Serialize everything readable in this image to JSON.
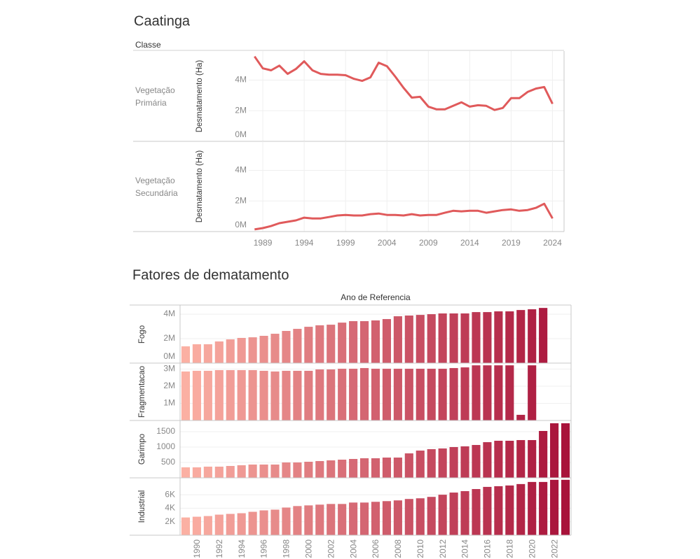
{
  "chart_data": [
    {
      "type": "line",
      "title": "Caatinga",
      "header": "Classe",
      "color": "#e05a5b",
      "grid": true,
      "x": [
        1988,
        1989,
        1990,
        1991,
        1992,
        1993,
        1994,
        1995,
        1996,
        1997,
        1998,
        1999,
        2000,
        2001,
        2002,
        2003,
        2004,
        2005,
        2006,
        2007,
        2008,
        2009,
        2010,
        2011,
        2012,
        2013,
        2014,
        2015,
        2016,
        2017,
        2018,
        2019,
        2020,
        2021,
        2022,
        2023,
        2024
      ],
      "xlim": [
        1987.3,
        2025.4
      ],
      "xticks": [
        1989,
        1994,
        1999,
        2004,
        2009,
        2014,
        2019,
        2024
      ],
      "ylim": [
        0,
        5900000
      ],
      "yticks": [
        {
          "value": 0,
          "label": "0M"
        },
        {
          "value": 2000000,
          "label": "2M"
        },
        {
          "value": 4000000,
          "label": "4M"
        }
      ],
      "panels": [
        {
          "label": "Vegetação Primária",
          "y_label": "Desmatamento (Ha)",
          "values": [
            5550000,
            4770000,
            4640000,
            4950000,
            4410000,
            4730000,
            5230000,
            4640000,
            4410000,
            4360000,
            4360000,
            4320000,
            4090000,
            3950000,
            4180000,
            5140000,
            4910000,
            4230000,
            3500000,
            2860000,
            2910000,
            2270000,
            2090000,
            2090000,
            2320000,
            2550000,
            2270000,
            2360000,
            2320000,
            2050000,
            2180000,
            2820000,
            2820000,
            3230000,
            3450000,
            3550000,
            2450000
          ]
        },
        {
          "label": "Vegetação Secundária",
          "y_label": "Desmatamento (Ha)",
          "values": [
            140000,
            230000,
            360000,
            550000,
            640000,
            730000,
            910000,
            860000,
            860000,
            950000,
            1050000,
            1090000,
            1050000,
            1050000,
            1140000,
            1180000,
            1090000,
            1090000,
            1050000,
            1140000,
            1050000,
            1090000,
            1090000,
            1230000,
            1360000,
            1320000,
            1360000,
            1360000,
            1230000,
            1320000,
            1410000,
            1450000,
            1360000,
            1410000,
            1550000,
            1820000,
            860000
          ]
        }
      ]
    },
    {
      "type": "bar",
      "title": "Fatores de dematamento",
      "x_label": "Ano de Referencia",
      "color_range": [
        "#fbb0a3",
        "#a8123a"
      ],
      "grid": true,
      "categories": [
        null,
        "1990",
        null,
        "1992",
        null,
        "1994",
        null,
        "1996",
        null,
        "1998",
        null,
        "2000",
        null,
        "2002",
        null,
        "2004",
        null,
        "2006",
        null,
        "2008",
        null,
        "2010",
        null,
        "2012",
        null,
        "2014",
        null,
        "2016",
        null,
        "2018",
        null,
        "2020",
        null,
        "2022",
        null
      ],
      "panels": [
        {
          "label": "Fogo",
          "ylim": [
            0,
            4690000
          ],
          "yticks": [
            {
              "value": 0,
              "label": "0M"
            },
            {
              "value": 2000000,
              "label": "2M"
            },
            {
              "value": 4000000,
              "label": "4M"
            }
          ],
          "values": [
            1370000,
            1540000,
            1540000,
            1770000,
            1940000,
            2060000,
            2110000,
            2230000,
            2400000,
            2630000,
            2800000,
            2970000,
            3090000,
            3140000,
            3310000,
            3430000,
            3430000,
            3490000,
            3600000,
            3830000,
            3890000,
            3940000,
            4000000,
            4060000,
            4060000,
            4060000,
            4170000,
            4170000,
            4230000,
            4230000,
            4340000,
            4400000,
            4510000,
            null,
            null
          ]
        },
        {
          "label": "Fragmentacao",
          "ylim": [
            0,
            3350000
          ],
          "yticks": [
            {
              "value": 1000000,
              "label": "1M"
            },
            {
              "value": 2000000,
              "label": "2M"
            },
            {
              "value": 3000000,
              "label": "3M"
            }
          ],
          "values": [
            2860000,
            2900000,
            2900000,
            2940000,
            2940000,
            2940000,
            2940000,
            2900000,
            2860000,
            2900000,
            2900000,
            2900000,
            2980000,
            2980000,
            3020000,
            3020000,
            3060000,
            3020000,
            3020000,
            3020000,
            3020000,
            3020000,
            3020000,
            3020000,
            3060000,
            3100000,
            3220000,
            3220000,
            3220000,
            3220000,
            330000,
            3220000,
            null,
            null,
            null
          ]
        },
        {
          "label": "Garimpo",
          "ylim": [
            0,
            1864
          ],
          "yticks": [
            500,
            1000,
            1500
          ],
          "values": [
            341,
            341,
            364,
            364,
            386,
            409,
            432,
            432,
            432,
            500,
            500,
            523,
            545,
            568,
            591,
            614,
            636,
            636,
            659,
            659,
            795,
            886,
            932,
            955,
            1000,
            1023,
            1068,
            1159,
            1205,
            1205,
            1227,
            1227,
            1523,
            1773,
            1773
          ]
        },
        {
          "label": "Industrial",
          "ylim": [
            0,
            8500
          ],
          "yticks": [
            {
              "value": 2000,
              "label": "2K"
            },
            {
              "value": 4000,
              "label": "4K"
            },
            {
              "value": 6000,
              "label": "6K"
            }
          ],
          "values": [
            2630,
            2740,
            2840,
            3050,
            3160,
            3260,
            3470,
            3680,
            3790,
            4100,
            4320,
            4420,
            4530,
            4630,
            4630,
            4840,
            4840,
            4950,
            5050,
            5160,
            5370,
            5470,
            5680,
            6000,
            6320,
            6530,
            6840,
            7160,
            7260,
            7370,
            7580,
            7890,
            7890,
            8210,
            8210
          ]
        }
      ]
    }
  ]
}
